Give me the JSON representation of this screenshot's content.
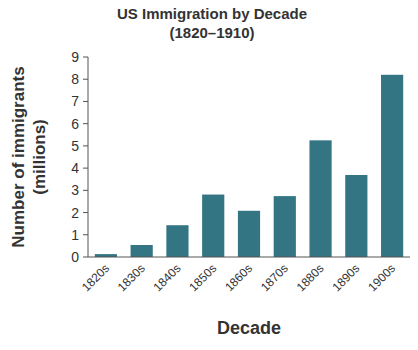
{
  "chart_data": {
    "type": "bar",
    "title": "US Immigration by Decade",
    "subtitle": "(1820–1910)",
    "x_label": "Decade",
    "y_label": "Number of immigrants (millions)",
    "categories": [
      "1820s",
      "1830s",
      "1840s",
      "1850s",
      "1860s",
      "1870s",
      "1880s",
      "1890s",
      "1900s"
    ],
    "values": [
      0.13,
      0.54,
      1.43,
      2.81,
      2.08,
      2.74,
      5.25,
      3.69,
      8.2
    ],
    "color": "#337583",
    "ylim": [
      0,
      9
    ],
    "yticks": [
      0,
      1,
      2,
      3,
      4,
      5,
      6,
      7,
      8,
      9
    ],
    "grid": false
  }
}
